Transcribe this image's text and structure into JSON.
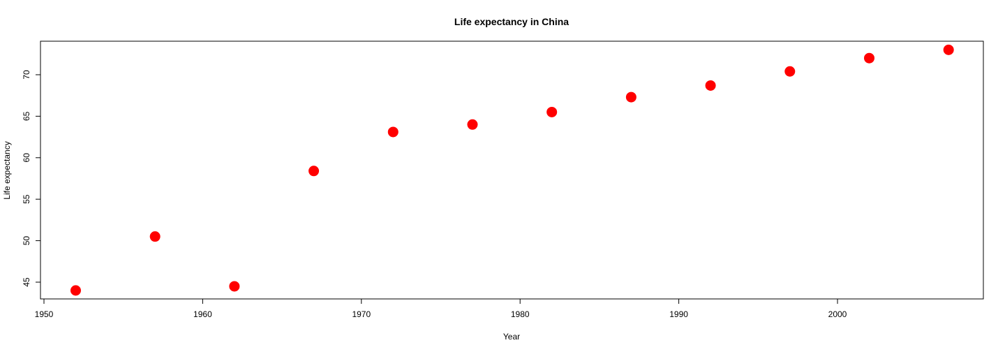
{
  "chart_data": {
    "type": "scatter",
    "title": "Life expectancy in China",
    "xlabel": "Year",
    "ylabel": "Life expectancy",
    "xlim": [
      1950,
      2008
    ],
    "ylim": [
      43,
      74
    ],
    "xticks": [
      1950,
      1960,
      1970,
      1980,
      1990,
      2000
    ],
    "yticks": [
      45,
      50,
      55,
      60,
      65,
      70
    ],
    "grid": false,
    "legend": "none",
    "point_color": "#ff0000",
    "series": [
      {
        "x": [
          1952,
          1957,
          1962,
          1967,
          1972,
          1977,
          1982,
          1987,
          1992,
          1997,
          2002,
          2007
        ],
        "y": [
          44.0,
          50.5,
          44.5,
          58.4,
          63.1,
          64.0,
          65.5,
          67.3,
          68.7,
          70.4,
          72.0,
          73.0
        ]
      }
    ]
  }
}
